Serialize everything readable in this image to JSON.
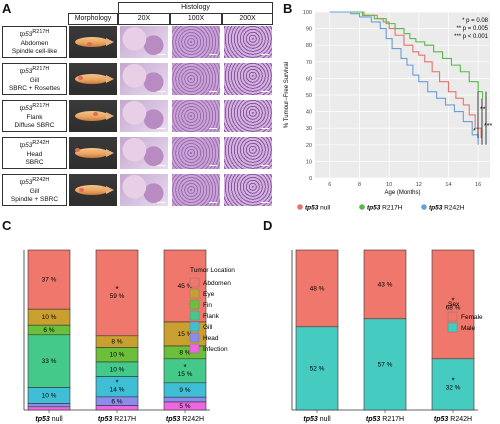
{
  "panelA": {
    "letter": "A",
    "headers": {
      "morphology": "Morphology",
      "histology": "Histology",
      "mag20": "20X",
      "mag100": "100X",
      "mag200": "200X"
    },
    "rows": [
      {
        "gene": "tp53",
        "allele": "R217H",
        "line1": "Abdomen",
        "line2": "Spindle cell-like"
      },
      {
        "gene": "tp53",
        "allele": "R217H",
        "line1": "Gill",
        "line2": "SBRC + Rosettes"
      },
      {
        "gene": "tp53",
        "allele": "R217H",
        "line1": "Flank",
        "line2": "Diffuse SBRC"
      },
      {
        "gene": "tp53",
        "allele": "R242H",
        "line1": "Head",
        "line2": "SBRC"
      },
      {
        "gene": "tp53",
        "allele": "R242H",
        "line1": "Gill",
        "line2": "Spindle + SBRC"
      }
    ]
  },
  "panelB": {
    "letter": "B",
    "sig": [
      "* p = 0.08",
      "** p = 0.005",
      "*** p < 0.001"
    ],
    "colors": {
      "null": "#e8736a",
      "R217H": "#5ab84a",
      "R242H": "#6a9fd8"
    }
  },
  "panelC": {
    "letter": "C"
  },
  "panelD": {
    "letter": "D"
  },
  "chart_data": [
    {
      "type": "line",
      "title": "",
      "xlabel": "Age (Months)",
      "ylabel": "% Tumour−Free Survival",
      "xlim": [
        5,
        16.8
      ],
      "ylim": [
        0,
        100
      ],
      "xticks": [
        6,
        8,
        10,
        12,
        14,
        16
      ],
      "yticks": [
        0,
        10,
        20,
        30,
        40,
        50,
        60,
        70,
        80,
        90,
        100
      ],
      "legend": [
        "tp53 null",
        "tp53 R217H",
        "tp53 R242H"
      ],
      "series": [
        {
          "name": "tp53 null",
          "color": "#e8736a",
          "x": [
            6,
            7.8,
            8.3,
            9.2,
            9.6,
            10.0,
            10.4,
            11.0,
            11.6,
            12.0,
            12.4,
            12.9,
            13.4,
            14.0,
            14.5,
            15.0,
            15.4,
            15.8,
            16.2
          ],
          "y": [
            100,
            100,
            98,
            96,
            94,
            90,
            86,
            80,
            76,
            74,
            70,
            64,
            58,
            52,
            48,
            44,
            38,
            30,
            24
          ]
        },
        {
          "name": "tp53 R217H",
          "color": "#5ab84a",
          "x": [
            6,
            7.6,
            8.2,
            9.0,
            9.8,
            10.4,
            11.0,
            11.4,
            11.8,
            12.4,
            13.0,
            13.6,
            14.2,
            14.8,
            15.4,
            16.0,
            16.3
          ],
          "y": [
            100,
            100,
            98,
            96,
            93,
            90,
            87,
            84,
            82,
            80,
            76,
            72,
            68,
            64,
            58,
            52,
            48
          ]
        },
        {
          "name": "tp53 R242H",
          "color": "#6a9fd8",
          "x": [
            6,
            7.4,
            8.0,
            8.8,
            9.4,
            9.8,
            10.2,
            10.8,
            11.2,
            11.6,
            12.0,
            12.6,
            13.2,
            13.8,
            14.4,
            15.0,
            15.6,
            16.0
          ],
          "y": [
            100,
            99,
            97,
            94,
            90,
            84,
            78,
            72,
            68,
            62,
            58,
            52,
            48,
            44,
            40,
            34,
            26,
            20
          ]
        }
      ]
    },
    {
      "type": "bar",
      "title": "",
      "legend_title": "Tumor Location",
      "categories": [
        "tp53 null",
        "tp53 R217H",
        "tp53 R242H"
      ],
      "series": [
        {
          "name": "Abdomen",
          "color": "#f0776c",
          "values": [
            37,
            59,
            45
          ]
        },
        {
          "name": "Eye",
          "color": "#c9a030",
          "values": [
            10,
            8,
            15
          ]
        },
        {
          "name": "Fin",
          "color": "#6bbf3a",
          "values": [
            6,
            10,
            8
          ]
        },
        {
          "name": "Flank",
          "color": "#45c98a",
          "values": [
            33,
            10,
            15
          ]
        },
        {
          "name": "Gill",
          "color": "#3fbfd6",
          "values": [
            10,
            14,
            9
          ]
        },
        {
          "name": "Head",
          "color": "#8c8cee",
          "values": [
            2,
            6,
            3
          ]
        },
        {
          "name": "Infection",
          "color": "#ee66e0",
          "values": [
            2,
            3,
            5
          ]
        }
      ],
      "labels": [
        [
          "37 %",
          "10 %",
          "6 %",
          "33 %",
          "10 %",
          "",
          ""
        ],
        [
          "59 %",
          "8 %",
          "10 %",
          "10 %",
          "14 %",
          "6 %",
          ""
        ],
        [
          "45 %",
          "15 %",
          "8 %",
          "15 %",
          "9 %",
          "",
          "5 %"
        ]
      ],
      "stars": [
        [
          0,
          1,
          0
        ],
        [
          0,
          0,
          0
        ],
        [
          0,
          0,
          0
        ],
        [
          0,
          0,
          1
        ],
        [
          0,
          1,
          0
        ],
        [
          0,
          0,
          0
        ],
        [
          0,
          0,
          0
        ]
      ]
    },
    {
      "type": "bar",
      "title": "",
      "legend_title": "Sex",
      "categories": [
        "tp53 null",
        "tp53 R217H",
        "tp53 R242H"
      ],
      "series": [
        {
          "name": "Female",
          "color": "#f0776c",
          "values": [
            48,
            43,
            68
          ]
        },
        {
          "name": "Male",
          "color": "#45cbc0",
          "values": [
            52,
            57,
            32
          ]
        }
      ],
      "labels": [
        [
          "48 %",
          "52 %"
        ],
        [
          "43 %",
          "57 %"
        ],
        [
          "68 %",
          "32 %"
        ]
      ],
      "stars": [
        [
          0,
          0,
          1
        ],
        [
          0,
          0,
          1
        ]
      ]
    }
  ]
}
